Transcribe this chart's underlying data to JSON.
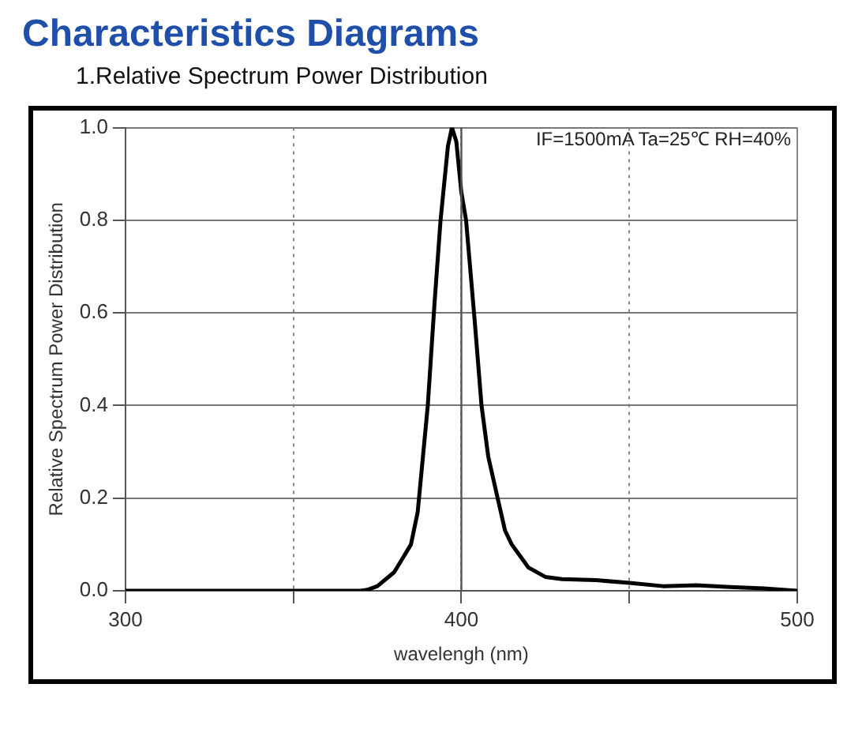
{
  "chart_data": {
    "type": "line",
    "title": "Characteristics Diagrams",
    "subtitle": "1.Relative Spectrum Power Distribution",
    "xlabel": "wavelengh (nm)",
    "ylabel": "Relative Spectrum Power Distribution",
    "annotations": [
      "IF=1500mA Ta=25℃ RH=40%"
    ],
    "x": [
      300,
      350,
      370,
      372,
      375,
      380,
      385,
      387,
      390,
      392,
      393.8,
      396,
      397.2,
      398.5,
      400,
      401.4,
      404,
      406,
      408,
      410.8,
      413,
      415,
      418,
      420,
      425,
      430,
      440,
      450,
      460,
      470,
      480,
      490,
      500
    ],
    "series": [
      {
        "color": "#000000",
        "values": [
          0,
          0,
          0,
          0.002,
          0.01,
          0.04,
          0.1,
          0.17,
          0.4,
          0.62,
          0.8,
          0.96,
          1.0,
          0.97,
          0.86,
          0.8,
          0.58,
          0.4,
          0.29,
          0.2,
          0.13,
          0.1,
          0.07,
          0.05,
          0.03,
          0.025,
          0.023,
          0.017,
          0.01,
          0.012,
          0.008,
          0.005,
          0
        ]
      }
    ],
    "xlim": [
      300,
      500
    ],
    "xticks": [
      300,
      {
        "value": 350,
        "label": null
      },
      400,
      {
        "value": 450,
        "label": null
      },
      500
    ],
    "ylim": [
      0,
      1
    ],
    "yticks": [
      {
        "value": 0,
        "label": "0.0"
      },
      {
        "value": 0.2,
        "label": "0.2"
      },
      {
        "value": 0.4,
        "label": "0.4"
      },
      {
        "value": 0.6,
        "label": "0.6"
      },
      {
        "value": 0.8,
        "label": "0.8"
      },
      {
        "value": 1,
        "label": "1.0"
      }
    ],
    "ref_lines": [
      {
        "axis": "x",
        "value": 400,
        "color": "#555555",
        "line_style": "solid"
      }
    ],
    "grid": true,
    "legend": false,
    "marker": "none",
    "line_style": "solid"
  }
}
